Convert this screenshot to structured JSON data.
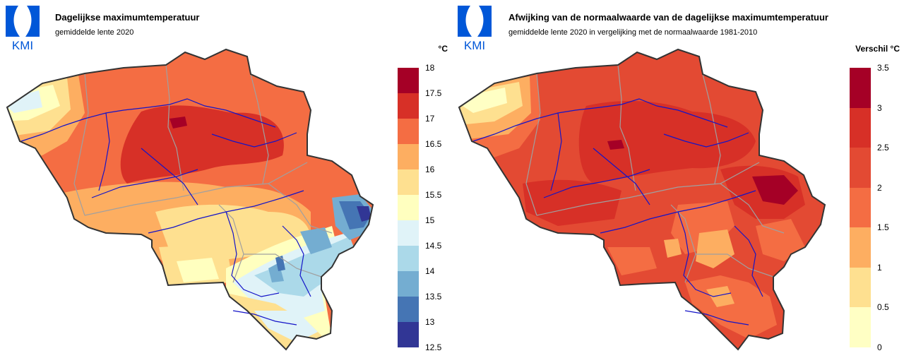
{
  "panels": [
    {
      "logo_text": "KMI",
      "title": "Dagelijkse maximumtemperatuur",
      "subtitle": "gemiddelde lente 2020",
      "unit": "°C",
      "legend": {
        "ticks": [
          "18",
          "17.5",
          "17",
          "16.5",
          "16",
          "15.5",
          "15",
          "14.5",
          "14",
          "13.5",
          "13",
          "12.5"
        ],
        "colors": [
          "#a50026",
          "#d73027",
          "#f46d43",
          "#fdae61",
          "#fee090",
          "#ffffbf",
          "#e0f3f8",
          "#abd9e9",
          "#74add1",
          "#4575b4",
          "#313695"
        ]
      },
      "map_palette": {
        "base": "#f46d43",
        "hot": "#d73027",
        "hottest": "#a50026",
        "warm": "#fdae61",
        "mild": "#fee090",
        "neutral": "#ffffbf",
        "cool": "#e0f3f8",
        "cooler": "#abd9e9",
        "cold": "#74add1",
        "colder": "#4575b4",
        "coldest": "#313695"
      }
    },
    {
      "logo_text": "KMI",
      "title": "Afwijking van de normaalwaarde van de dagelijkse maximumtemperatuur",
      "subtitle": "gemiddelde lente 2020 in vergelijking met de normaalwaarde 1981-2010",
      "unit": "Verschil °C",
      "legend": {
        "ticks": [
          "3.5",
          "3",
          "2.5",
          "2",
          "1.5",
          "1",
          "0.5",
          "0"
        ],
        "colors": [
          "#a50026",
          "#d73027",
          "#e34a33",
          "#f46d43",
          "#fdae61",
          "#fee090",
          "#ffffc4"
        ]
      },
      "map_palette": {
        "base": "#e34a33",
        "hot": "#d73027",
        "hottest": "#a50026",
        "warm": "#f46d43",
        "mild": "#fdae61",
        "neutral": "#fee090",
        "cool": "#ffffc4"
      }
    }
  ],
  "map_lines": {
    "border": "#333333",
    "provinces": "#a0a0a0",
    "rivers": "#1414c8"
  },
  "logo_color": "#0057d8"
}
